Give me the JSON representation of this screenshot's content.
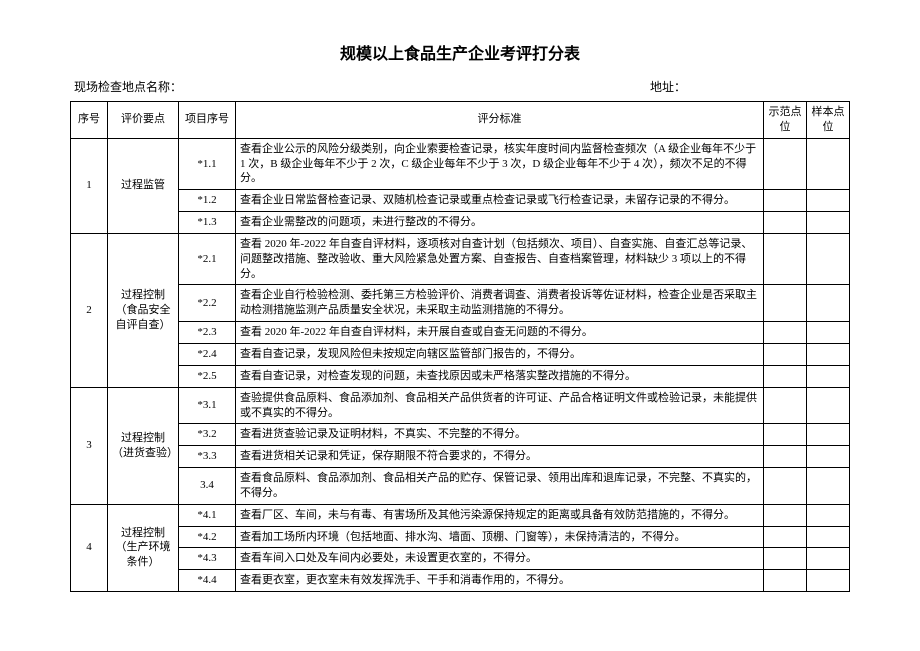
{
  "title": "规模以上食品生产企业考评打分表",
  "subheader_left": "现场检查地点名称：",
  "subheader_right": "地址：",
  "headers": {
    "seq": "序号",
    "point": "评价要点",
    "item": "项目序号",
    "std": "评分标准",
    "demo": "示范点位",
    "sample": "样本点位"
  },
  "groups": [
    {
      "seq": "1",
      "point": "过程监管",
      "items": [
        {
          "no": "*1.1",
          "std": "查看企业公示的风险分级类别，向企业索要检查记录，核实年度时间内监督检查频次（A 级企业每年不少于 1 次，B 级企业每年不少于 2 次，C 级企业每年不少于 3 次，D 级企业每年不少于 4 次），频次不足的不得分。"
        },
        {
          "no": "*1.2",
          "std": "查看企业日常监督检查记录、双随机检查记录或重点检查记录或飞行检查记录，未留存记录的不得分。"
        },
        {
          "no": "*1.3",
          "std": "查看企业需整改的问题项，未进行整改的不得分。"
        }
      ]
    },
    {
      "seq": "2",
      "point": "过程控制（食品安全自评自查）",
      "items": [
        {
          "no": "*2.1",
          "std": "查看 2020 年-2022 年自查自评材料，逐项核对自查计划（包括频次、项目）、自查实施、自查汇总等记录、问题整改措施、整改验收、重大风险紧急处置方案、自查报告、自查档案管理，材料缺少 3 项以上的不得分。"
        },
        {
          "no": "*2.2",
          "std": "查看企业自行检验检测、委托第三方检验评价、消费者调查、消费者投诉等佐证材料，检查企业是否采取主动检测措施监测产品质量安全状况，未采取主动监测措施的不得分。"
        },
        {
          "no": "*2.3",
          "std": "查看 2020 年-2022 年自查自评材料，未开展自查或自查无问题的不得分。"
        },
        {
          "no": "*2.4",
          "std": "查看自查记录，发现风险但未按规定向辖区监管部门报告的，不得分。"
        },
        {
          "no": "*2.5",
          "std": "查看自查记录，对检查发现的问题，未查找原因或未严格落实整改措施的不得分。"
        }
      ]
    },
    {
      "seq": "3",
      "point": "过程控制（进货查验）",
      "items": [
        {
          "no": "*3.1",
          "std": "查验提供食品原料、食品添加剂、食品相关产品供货者的许可证、产品合格证明文件或检验记录，未能提供或不真实的不得分。"
        },
        {
          "no": "*3.2",
          "std": "查看进货查验记录及证明材料，不真实、不完整的不得分。"
        },
        {
          "no": "*3.3",
          "std": "查看进货相关记录和凭证，保存期限不符合要求的，不得分。"
        },
        {
          "no": "3.4",
          "std": "查看食品原料、食品添加剂、食品相关产品的贮存、保管记录、领用出库和退库记录，不完整、不真实的，不得分。"
        }
      ]
    },
    {
      "seq": "4",
      "point": "过程控制（生产环境条件）",
      "items": [
        {
          "no": "*4.1",
          "std": "查看厂区、车间，未与有毒、有害场所及其他污染源保持规定的距离或具备有效防范措施的，不得分。"
        },
        {
          "no": "*4.2",
          "std": "查看加工场所内环境（包括地面、排水沟、墙面、顶棚、门窗等），未保持清洁的，不得分。"
        },
        {
          "no": "*4.3",
          "std": "查看车间入口处及车间内必要处，未设置更衣室的，不得分。"
        },
        {
          "no": "*4.4",
          "std": "查看更衣室，更衣室未有效发挥洗手、干手和消毒作用的，不得分。"
        }
      ]
    }
  ]
}
